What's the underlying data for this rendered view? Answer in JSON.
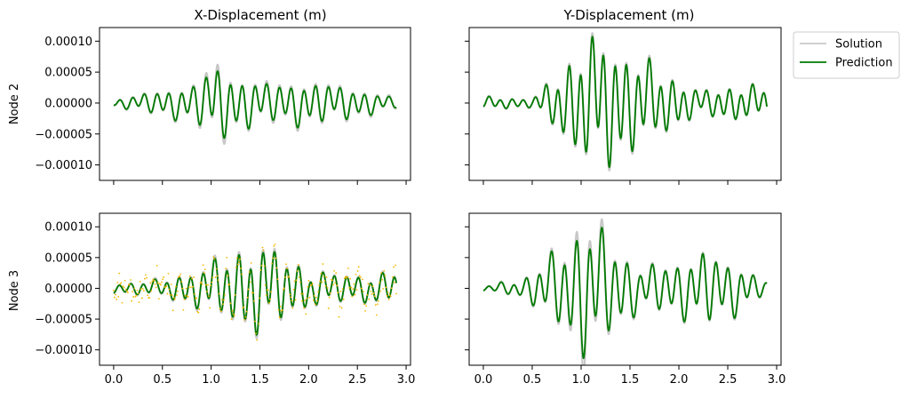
{
  "chart_data": {
    "type": "line",
    "layout": "2x2 grid, shared x and y axes",
    "column_titles": [
      "X-Displacement (m)",
      "Y-Displacement (m)"
    ],
    "row_labels": [
      "Node 2",
      "Node 3"
    ],
    "xlim": [
      -0.145,
      3.045
    ],
    "ylim": [
      -0.000125,
      0.000122
    ],
    "x_ticks": [
      0.0,
      0.5,
      1.0,
      1.5,
      2.0,
      2.5,
      3.0
    ],
    "x_tick_labels": [
      "0.0",
      "0.5",
      "1.0",
      "1.5",
      "2.0",
      "2.5",
      "3.0"
    ],
    "y_ticks": [
      0.0001,
      5e-05,
      0.0,
      -5e-05,
      -0.0001
    ],
    "y_tick_labels": [
      "0.00010",
      "0.00005",
      "0.00000",
      "−0.00005",
      "−0.00010"
    ],
    "legend": {
      "placement": "outside top-right",
      "entries": [
        "Solution",
        "Prediction"
      ]
    },
    "colors": {
      "solution": "#c8c8c8",
      "prediction": "#007a00",
      "observations": "#f5b800"
    },
    "time_range": [
      0.0,
      2.9
    ],
    "panels": [
      {
        "row": "Node 2",
        "column": "X-Displacement (m)",
        "series": [
          {
            "name": "Solution",
            "style": "light-gray line",
            "envelope": [
              [
                0.0,
                6e-06
              ],
              [
                0.5,
                2.2e-05
              ],
              [
                0.8,
                3e-05
              ],
              [
                1.05,
                7e-05
              ],
              [
                1.3,
                4.2e-05
              ],
              [
                1.6,
                3.5e-05
              ],
              [
                2.0,
                3.8e-05
              ],
              [
                2.5,
                2.5e-05
              ],
              [
                2.9,
                1e-05
              ]
            ]
          },
          {
            "name": "Prediction",
            "style": "green line",
            "envelope": [
              [
                0.0,
                5e-06
              ],
              [
                0.5,
                2e-05
              ],
              [
                0.8,
                2.8e-05
              ],
              [
                1.05,
                5.8e-05
              ],
              [
                1.3,
                4e-05
              ],
              [
                1.6,
                3e-05
              ],
              [
                2.0,
                3.4e-05
              ],
              [
                2.5,
                2.2e-05
              ],
              [
                2.9,
                8e-06
              ]
            ]
          }
        ]
      },
      {
        "row": "Node 2",
        "column": "Y-Displacement (m)",
        "series": [
          {
            "name": "Solution",
            "style": "light-gray line",
            "envelope": [
              [
                0.0,
                1e-05
              ],
              [
                0.5,
                8e-06
              ],
              [
                0.75,
                4.5e-05
              ],
              [
                1.0,
                9.5e-05
              ],
              [
                1.25,
                0.000105
              ],
              [
                1.5,
                8e-05
              ],
              [
                1.8,
                5.5e-05
              ],
              [
                2.2,
                2e-05
              ],
              [
                2.6,
                2.8e-05
              ],
              [
                2.9,
                2.5e-05
              ]
            ]
          },
          {
            "name": "Prediction",
            "style": "green line",
            "envelope": [
              [
                0.0,
                9e-06
              ],
              [
                0.5,
                7e-06
              ],
              [
                0.75,
                4.2e-05
              ],
              [
                1.0,
                9e-05
              ],
              [
                1.25,
                0.0001
              ],
              [
                1.5,
                7.6e-05
              ],
              [
                1.8,
                5.2e-05
              ],
              [
                2.2,
                1.9e-05
              ],
              [
                2.6,
                2.7e-05
              ],
              [
                2.9,
                2.4e-05
              ]
            ]
          }
        ]
      },
      {
        "row": "Node 3",
        "column": "X-Displacement (m)",
        "series": [
          {
            "name": "Solution",
            "style": "light-gray line",
            "envelope": [
              [
                0.0,
                8e-06
              ],
              [
                0.5,
                1.5e-05
              ],
              [
                0.9,
                3.5e-05
              ],
              [
                1.15,
                5.5e-05
              ],
              [
                1.45,
                7.5e-05
              ],
              [
                1.7,
                6e-05
              ],
              [
                2.0,
                3e-05
              ],
              [
                2.5,
                2.2e-05
              ],
              [
                2.9,
                2.8e-05
              ]
            ]
          },
          {
            "name": "Prediction",
            "style": "green line",
            "envelope": [
              [
                0.0,
                7e-06
              ],
              [
                0.5,
                1.3e-05
              ],
              [
                0.9,
                3.2e-05
              ],
              [
                1.15,
                5e-05
              ],
              [
                1.45,
                7e-05
              ],
              [
                1.7,
                5.5e-05
              ],
              [
                2.0,
                2.8e-05
              ],
              [
                2.5,
                2e-05
              ],
              [
                2.9,
                2.6e-05
              ]
            ]
          },
          {
            "name": "Observations",
            "style": "sparse orange dots",
            "noise_std": 1.5e-05
          }
        ]
      },
      {
        "row": "Node 3",
        "column": "Y-Displacement (m)",
        "series": [
          {
            "name": "Solution",
            "style": "light-gray line",
            "envelope": [
              [
                0.0,
                5e-06
              ],
              [
                0.4,
                1.5e-05
              ],
              [
                0.8,
                7e-05
              ],
              [
                1.05,
                0.000135
              ],
              [
                1.3,
                8e-05
              ],
              [
                1.6,
                3.5e-05
              ],
              [
                2.0,
                4.5e-05
              ],
              [
                2.3,
                6e-05
              ],
              [
                2.6,
                4e-05
              ],
              [
                2.9,
                1e-05
              ]
            ]
          },
          {
            "name": "Prediction",
            "style": "green line",
            "envelope": [
              [
                0.0,
                4e-06
              ],
              [
                0.4,
                1.4e-05
              ],
              [
                0.8,
                6.5e-05
              ],
              [
                1.05,
                0.00011
              ],
              [
                1.3,
                7.5e-05
              ],
              [
                1.6,
                3.3e-05
              ],
              [
                2.0,
                4.3e-05
              ],
              [
                2.3,
                5.8e-05
              ],
              [
                2.6,
                3.8e-05
              ],
              [
                2.9,
                9e-06
              ]
            ]
          }
        ]
      }
    ]
  }
}
